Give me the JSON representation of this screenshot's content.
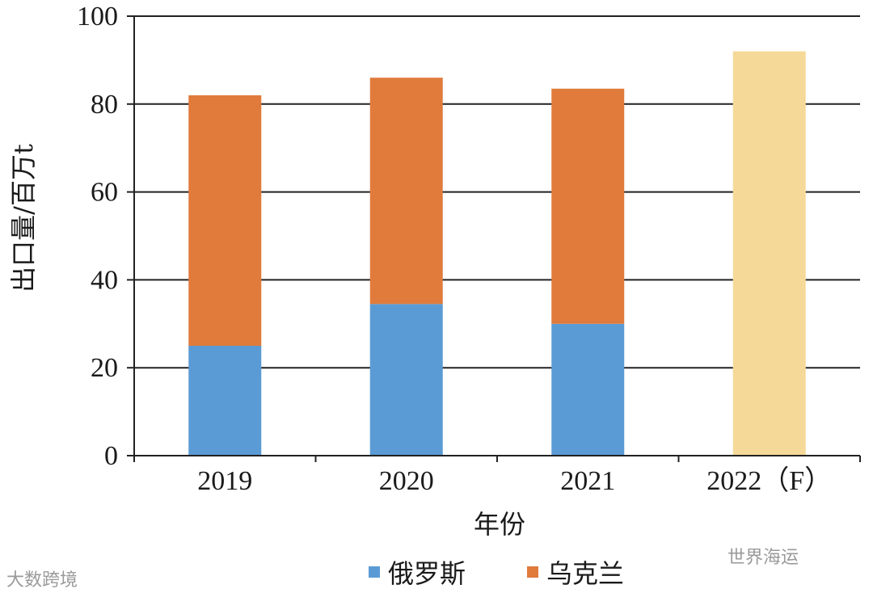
{
  "chart_data": {
    "type": "bar",
    "stacked": true,
    "categories": [
      "2019",
      "2020",
      "2021",
      "2022（F）"
    ],
    "series": [
      {
        "name": "俄罗斯",
        "color": "#5b9bd5",
        "values": [
          25,
          34.5,
          30,
          null
        ]
      },
      {
        "name": "乌克兰",
        "color": "#e07b3c",
        "values": [
          57,
          51.5,
          53.5,
          null
        ]
      },
      {
        "name": "",
        "color": "#f5d998",
        "values": [
          null,
          null,
          null,
          92
        ]
      }
    ],
    "xlabel": "年份",
    "ylabel": "出口量/百万t",
    "ylim": [
      0,
      100
    ],
    "yticks": [
      0,
      20,
      40,
      60,
      80,
      100
    ],
    "grid": true,
    "legend_position": "bottom"
  },
  "watermarks": {
    "left": "大数跨境",
    "right": "世界海运"
  }
}
